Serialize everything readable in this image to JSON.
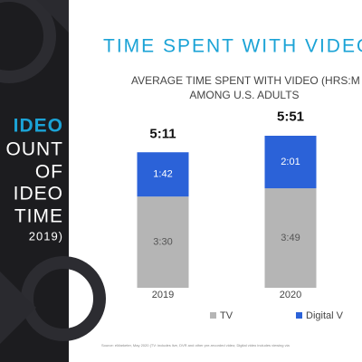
{
  "sidebar": {
    "lines": [
      "IDEO",
      "OUNT",
      "OF",
      "IDEO",
      "TIME",
      "2019)"
    ]
  },
  "chart_data": {
    "type": "stacked_bar",
    "title": "TIME SPENT WITH VIDEO",
    "subtitle": [
      "AVERAGE TIME SPENT  WITH VIDEO (HRS:M",
      "AMONG U.S. ADULTS"
    ],
    "categories": [
      "2019",
      "2020"
    ],
    "series": [
      {
        "name": "TV",
        "color": "#b5b5b5",
        "values": [
          210,
          229
        ],
        "value_labels": [
          "3:30",
          "3:49"
        ]
      },
      {
        "name": "Digital V",
        "color": "#2b62d8",
        "values": [
          102,
          121
        ],
        "value_labels": [
          "1:42",
          "2:01"
        ]
      }
    ],
    "totals": [
      311,
      351
    ],
    "total_labels": [
      "5:11",
      "5:51"
    ],
    "source": "Source: eMarketer, May 2020 (TV: includes live, DVR and other pre-recorded video; Digital video includes viewing via"
  }
}
